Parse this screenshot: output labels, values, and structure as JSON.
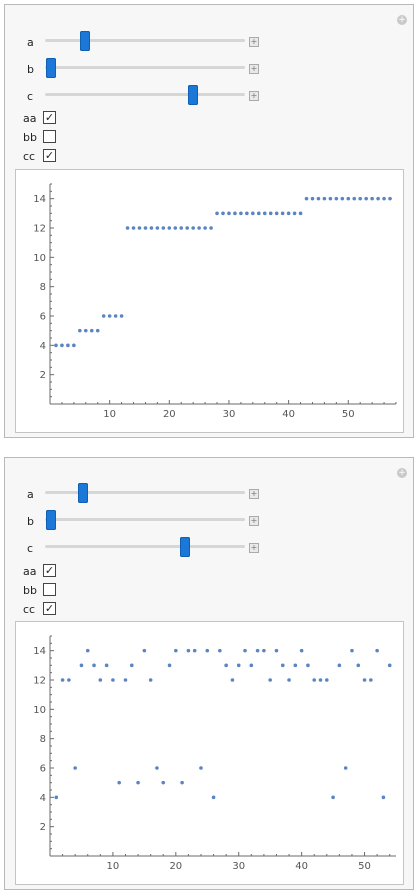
{
  "panels": [
    {
      "controls": [
        {
          "label": "a",
          "value_fraction": 0.2
        },
        {
          "label": "b",
          "value_fraction": 0.03
        },
        {
          "label": "c",
          "value_fraction": 0.74
        }
      ],
      "checkboxes": [
        {
          "label": "aa",
          "checked": true
        },
        {
          "label": "bb",
          "checked": false
        },
        {
          "label": "cc",
          "checked": true
        }
      ]
    },
    {
      "controls": [
        {
          "label": "a",
          "value_fraction": 0.19
        },
        {
          "label": "b",
          "value_fraction": 0.03
        },
        {
          "label": "c",
          "value_fraction": 0.7
        }
      ],
      "checkboxes": [
        {
          "label": "aa",
          "checked": true
        },
        {
          "label": "bb",
          "checked": false
        },
        {
          "label": "cc",
          "checked": true
        }
      ]
    }
  ],
  "colors": {
    "accent": "#1b78d8",
    "points": "#5b84c2",
    "axis": "#6a6a6a"
  },
  "chart_data": [
    {
      "type": "scatter",
      "title": "",
      "xlabel": "",
      "ylabel": "",
      "xlim": [
        0,
        58
      ],
      "ylim": [
        0,
        15
      ],
      "xticks": [
        10,
        20,
        30,
        40,
        50
      ],
      "yticks": [
        2,
        4,
        6,
        8,
        10,
        12,
        14
      ],
      "series": [
        {
          "x": [
            1,
            2,
            3,
            4,
            5,
            6,
            7,
            8,
            9,
            10,
            11,
            12,
            13,
            14,
            15,
            16,
            17,
            18,
            19,
            20,
            21,
            22,
            23,
            24,
            25,
            26,
            27,
            28,
            29,
            30,
            31,
            32,
            33,
            34,
            35,
            36,
            37,
            38,
            39,
            40,
            41,
            42,
            43,
            44,
            45,
            46,
            47,
            48,
            49,
            50,
            51,
            52,
            53,
            54,
            55,
            56,
            57
          ],
          "y": [
            4,
            4,
            4,
            4,
            5,
            5,
            5,
            5,
            6,
            6,
            6,
            6,
            12,
            12,
            12,
            12,
            12,
            12,
            12,
            12,
            12,
            12,
            12,
            12,
            12,
            12,
            12,
            13,
            13,
            13,
            13,
            13,
            13,
            13,
            13,
            13,
            13,
            13,
            13,
            13,
            13,
            13,
            14,
            14,
            14,
            14,
            14,
            14,
            14,
            14,
            14,
            14,
            14,
            14,
            14,
            14,
            14
          ]
        }
      ]
    },
    {
      "type": "scatter",
      "title": "",
      "xlabel": "",
      "ylabel": "",
      "xlim": [
        0,
        55
      ],
      "ylim": [
        0,
        15
      ],
      "xticks": [
        10,
        20,
        30,
        40,
        50
      ],
      "yticks": [
        2,
        4,
        6,
        8,
        10,
        12,
        14
      ],
      "series": [
        {
          "x": [
            1,
            2,
            3,
            4,
            5,
            6,
            7,
            8,
            9,
            10,
            11,
            12,
            13,
            14,
            15,
            16,
            17,
            18,
            19,
            20,
            21,
            22,
            23,
            24,
            25,
            26,
            27,
            28,
            29,
            30,
            31,
            32,
            33,
            34,
            35,
            36,
            37,
            38,
            39,
            40,
            41,
            42,
            43,
            44,
            45,
            46,
            47,
            48,
            49,
            50,
            51,
            52,
            53,
            54
          ],
          "y": [
            4,
            12,
            12,
            6,
            13,
            14,
            13,
            12,
            13,
            12,
            5,
            12,
            13,
            5,
            14,
            12,
            6,
            5,
            13,
            14,
            5,
            14,
            14,
            6,
            14,
            4,
            14,
            13,
            12,
            13,
            14,
            13,
            14,
            14,
            12,
            14,
            13,
            12,
            13,
            14,
            13,
            12,
            12,
            12,
            4,
            13,
            6,
            14,
            13,
            12,
            12,
            14,
            4,
            13
          ]
        }
      ]
    }
  ]
}
